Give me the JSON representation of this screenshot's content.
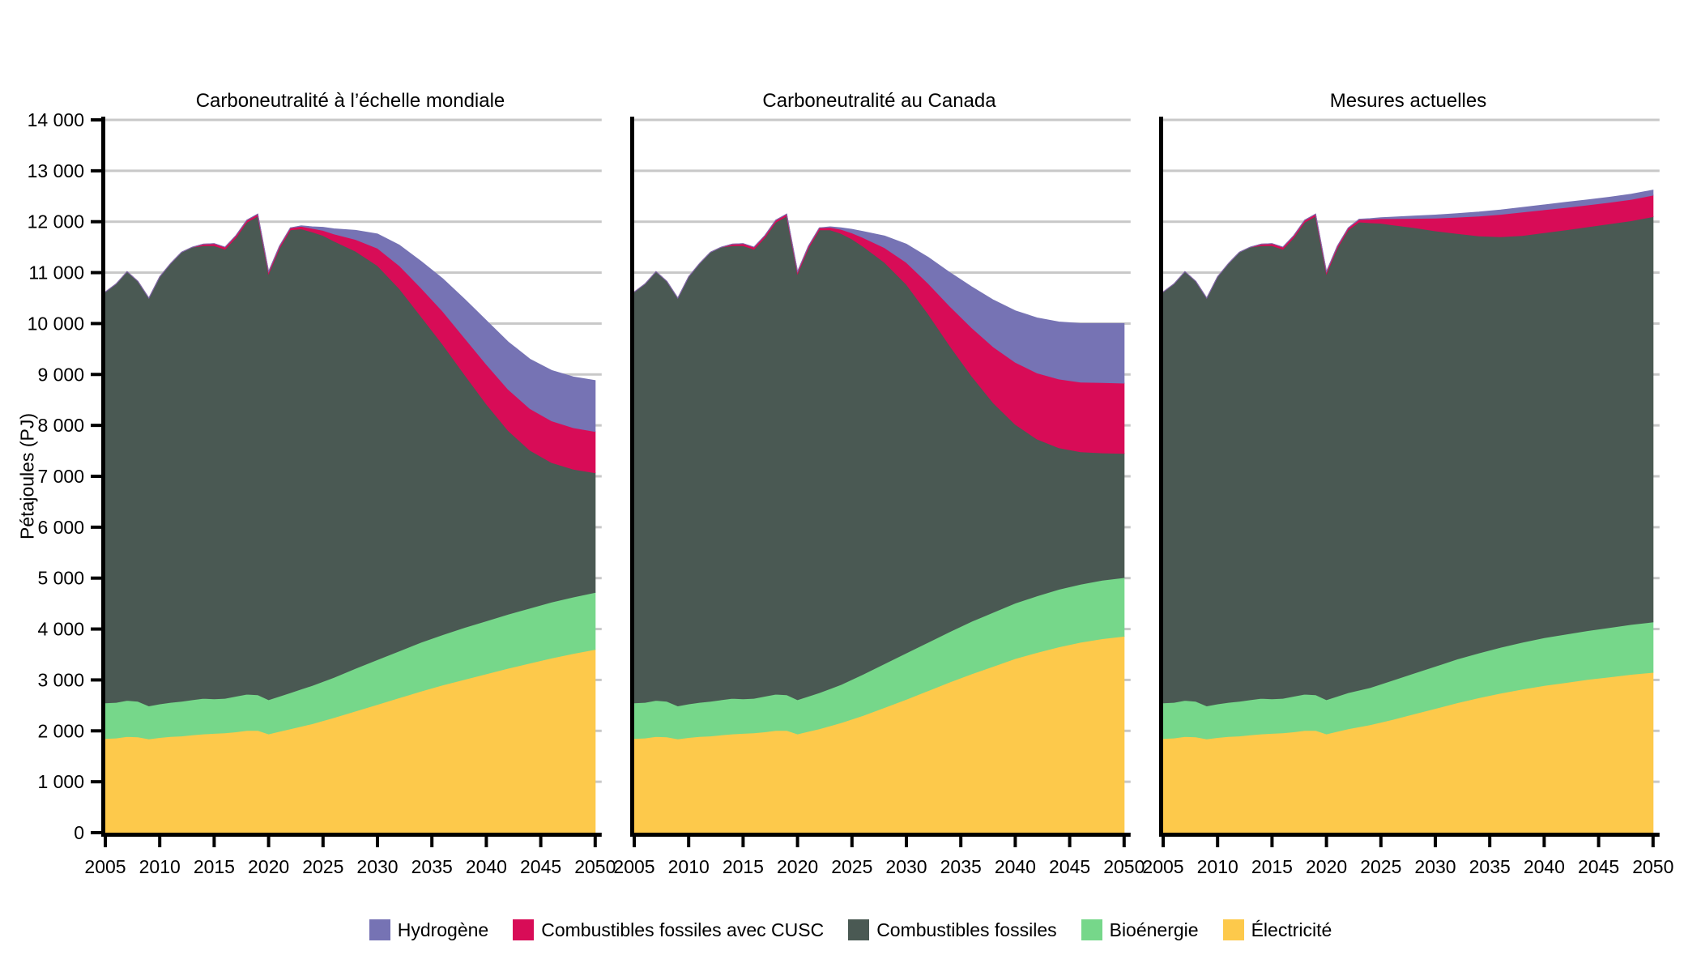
{
  "page": {
    "background": "#FFFFFF",
    "text_color": "#000000"
  },
  "chart_data": {
    "type": "area",
    "stacked": true,
    "ylabel": "Pétajoules (PJ)",
    "unit": "PJ",
    "ylim": [
      0,
      14000
    ],
    "yticks": [
      0,
      1000,
      2000,
      3000,
      4000,
      5000,
      6000,
      7000,
      8000,
      9000,
      10000,
      11000,
      12000,
      13000,
      14000
    ],
    "ytick_labels": [
      "0",
      "1 000",
      "2 000",
      "3 000",
      "4 000",
      "5 000",
      "6 000",
      "7 000",
      "8 000",
      "9 000",
      "10 000",
      "11 000",
      "12 000",
      "13 000",
      "14 000"
    ],
    "xlim": [
      2005,
      2050
    ],
    "xticks": [
      2005,
      2010,
      2015,
      2020,
      2025,
      2030,
      2035,
      2040,
      2045,
      2050
    ],
    "xtick_labels": [
      "2005",
      "2010",
      "2015",
      "2020",
      "2025",
      "2030",
      "2035",
      "2040",
      "2045",
      "2050"
    ],
    "grid_on": true,
    "grid_color": "#C8C8C8",
    "axis_color": "#000000",
    "legend_position": "bottom-center",
    "legend": [
      {
        "id": "hydrogene",
        "label": "Hydrogène",
        "color": "#7673B4"
      },
      {
        "id": "cusc",
        "label": "Combustibles fossiles avec CUSC",
        "color": "#D80C57"
      },
      {
        "id": "fossiles",
        "label": "Combustibles fossiles",
        "color": "#4A5953"
      },
      {
        "id": "bioenergie",
        "label": "Bioénergie",
        "color": "#76D78A"
      },
      {
        "id": "electricite",
        "label": "Électricité",
        "color": "#FDC94B"
      }
    ],
    "series_order_bottom_to_top": [
      "electricite",
      "bioenergie",
      "fossiles",
      "cusc",
      "hydrogene"
    ],
    "series_colors": {
      "electricite": "#FDC94B",
      "bioenergie": "#76D78A",
      "fossiles": "#4A5953",
      "cusc": "#D80C57",
      "hydrogene": "#7673B4"
    },
    "x": [
      2005,
      2006,
      2007,
      2008,
      2009,
      2010,
      2011,
      2012,
      2013,
      2014,
      2015,
      2016,
      2017,
      2018,
      2019,
      2020,
      2021,
      2022,
      2023,
      2024,
      2025,
      2026,
      2028,
      2030,
      2032,
      2034,
      2036,
      2038,
      2040,
      2042,
      2044,
      2046,
      2048,
      2050
    ],
    "panels": [
      {
        "title": "Carboneutralité à l’échelle mondiale",
        "series": {
          "electricite": [
            1850,
            1860,
            1890,
            1880,
            1840,
            1870,
            1890,
            1900,
            1920,
            1940,
            1950,
            1960,
            1980,
            2010,
            2010,
            1940,
            1990,
            2040,
            2090,
            2140,
            2200,
            2260,
            2390,
            2520,
            2650,
            2780,
            2900,
            3010,
            3120,
            3230,
            3330,
            3430,
            3520,
            3600
          ],
          "bioenergie": [
            700,
            700,
            710,
            700,
            650,
            660,
            670,
            680,
            690,
            700,
            680,
            680,
            700,
            710,
            700,
            670,
            690,
            710,
            730,
            750,
            770,
            790,
            840,
            880,
            920,
            960,
            990,
            1020,
            1040,
            1060,
            1080,
            1100,
            1110,
            1120
          ],
          "fossiles": [
            8070,
            8220,
            8420,
            8250,
            8010,
            8390,
            8620,
            8820,
            8890,
            8890,
            8900,
            8820,
            9010,
            9270,
            9400,
            8370,
            8800,
            9090,
            9040,
            8910,
            8760,
            8570,
            8190,
            7740,
            7120,
            6400,
            5700,
            4970,
            4260,
            3610,
            3100,
            2740,
            2510,
            2350
          ],
          "cusc": [
            0,
            0,
            0,
            0,
            0,
            0,
            0,
            0,
            0,
            30,
            40,
            40,
            40,
            40,
            40,
            40,
            40,
            40,
            50,
            70,
            100,
            140,
            230,
            340,
            450,
            560,
            650,
            720,
            780,
            810,
            820,
            820,
            815,
            810
          ],
          "hydrogene": [
            0,
            0,
            0,
            0,
            0,
            0,
            0,
            0,
            0,
            0,
            0,
            0,
            0,
            0,
            0,
            0,
            0,
            0,
            10,
            30,
            60,
            100,
            180,
            280,
            400,
            520,
            640,
            760,
            860,
            930,
            970,
            990,
            995,
            1000
          ]
        }
      },
      {
        "title": "Carboneutralité au Canada",
        "series": {
          "electricite": [
            1850,
            1860,
            1890,
            1880,
            1840,
            1870,
            1890,
            1900,
            1920,
            1940,
            1950,
            1960,
            1980,
            2010,
            2010,
            1940,
            1990,
            2040,
            2100,
            2160,
            2230,
            2300,
            2460,
            2620,
            2790,
            2960,
            3120,
            3270,
            3420,
            3540,
            3650,
            3740,
            3810,
            3860
          ],
          "bioenergie": [
            700,
            700,
            710,
            700,
            650,
            660,
            670,
            680,
            690,
            700,
            680,
            680,
            700,
            710,
            700,
            670,
            690,
            710,
            730,
            750,
            780,
            810,
            860,
            910,
            950,
            990,
            1030,
            1060,
            1090,
            1110,
            1130,
            1140,
            1150,
            1150
          ],
          "fossiles": [
            8070,
            8220,
            8420,
            8250,
            8010,
            8390,
            8620,
            8820,
            8890,
            8890,
            8900,
            8820,
            9010,
            9270,
            9400,
            8370,
            8800,
            9090,
            9010,
            8860,
            8650,
            8410,
            7880,
            7240,
            6450,
            5610,
            4820,
            4110,
            3510,
            3080,
            2780,
            2600,
            2500,
            2440
          ],
          "cusc": [
            0,
            0,
            0,
            0,
            0,
            0,
            0,
            0,
            0,
            30,
            40,
            40,
            40,
            40,
            40,
            40,
            40,
            40,
            50,
            80,
            120,
            170,
            290,
            430,
            600,
            780,
            950,
            1100,
            1220,
            1300,
            1350,
            1370,
            1380,
            1380
          ],
          "hydrogene": [
            0,
            0,
            0,
            0,
            0,
            0,
            0,
            0,
            0,
            0,
            0,
            0,
            0,
            0,
            0,
            0,
            0,
            0,
            10,
            30,
            70,
            120,
            230,
            360,
            510,
            660,
            800,
            920,
            1010,
            1080,
            1120,
            1150,
            1160,
            1170
          ]
        }
      },
      {
        "title": "Mesures actuelles",
        "series": {
          "electricite": [
            1850,
            1860,
            1890,
            1880,
            1840,
            1870,
            1890,
            1900,
            1920,
            1940,
            1950,
            1960,
            1980,
            2010,
            2010,
            1940,
            1990,
            2040,
            2080,
            2120,
            2170,
            2220,
            2330,
            2440,
            2550,
            2650,
            2740,
            2820,
            2890,
            2950,
            3010,
            3060,
            3110,
            3150
          ],
          "bioenergie": [
            700,
            700,
            710,
            700,
            650,
            660,
            670,
            680,
            690,
            700,
            680,
            680,
            700,
            710,
            700,
            670,
            690,
            710,
            720,
            730,
            750,
            770,
            800,
            830,
            860,
            880,
            900,
            920,
            940,
            950,
            960,
            970,
            980,
            990
          ],
          "fossiles": [
            8070,
            8220,
            8420,
            8250,
            8010,
            8390,
            8620,
            8820,
            8890,
            8890,
            8900,
            8820,
            9010,
            9270,
            9400,
            8370,
            8800,
            9090,
            9195,
            9130,
            9050,
            8950,
            8755,
            8550,
            8360,
            8190,
            8065,
            7990,
            7955,
            7940,
            7930,
            7930,
            7930,
            7960
          ],
          "cusc": [
            0,
            0,
            0,
            0,
            0,
            0,
            0,
            0,
            0,
            30,
            40,
            40,
            40,
            40,
            40,
            40,
            40,
            40,
            50,
            70,
            90,
            120,
            180,
            250,
            320,
            390,
            440,
            460,
            450,
            440,
            430,
            420,
            420,
            420
          ],
          "hydrogene": [
            0,
            0,
            0,
            0,
            0,
            0,
            0,
            0,
            0,
            0,
            0,
            0,
            0,
            0,
            0,
            0,
            0,
            0,
            5,
            10,
            20,
            30,
            45,
            60,
            70,
            80,
            85,
            90,
            95,
            100,
            100,
            100,
            100,
            100
          ]
        }
      }
    ]
  }
}
